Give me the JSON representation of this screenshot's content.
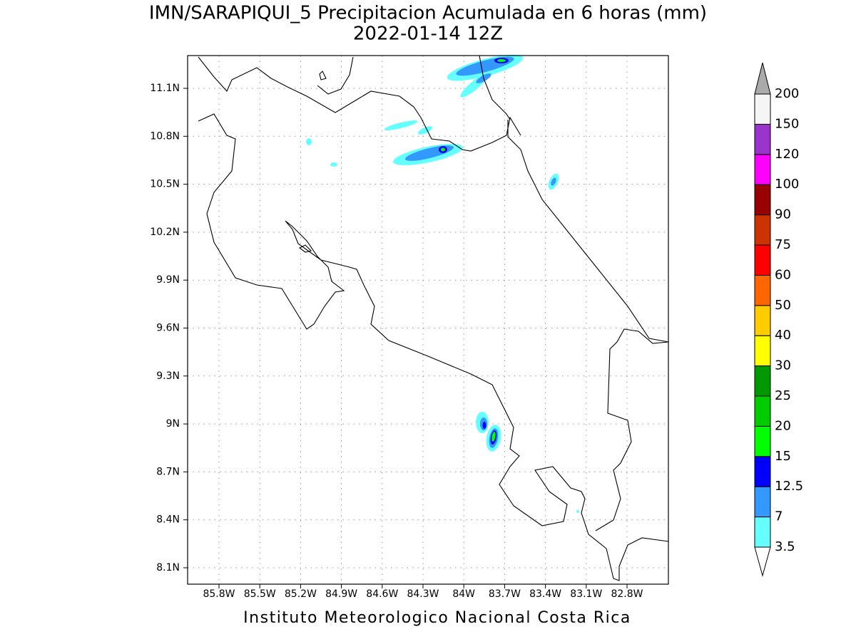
{
  "map": {
    "title": "IMN/SARAPIQUI_5 Precipitacion Acumulada en 6 horas (mm)",
    "subtitle": "2022-01-14 12Z",
    "footer": "Instituto Meteorologico Nacional Costa Rica",
    "lon_ticks": [
      "85.8W",
      "85.5W",
      "85.2W",
      "84.9W",
      "84.6W",
      "84.3W",
      "84W",
      "83.7W",
      "83.4W",
      "83.1W",
      "82.8W"
    ],
    "lat_ticks": [
      "11.1N",
      "10.8N",
      "10.5N",
      "10.2N",
      "9.9N",
      "9.6N",
      "9.3N",
      "9N",
      "8.7N",
      "8.4N",
      "8.1N"
    ],
    "colorbar": {
      "levels": [
        3.5,
        7,
        12.5,
        15,
        20,
        25,
        30,
        40,
        50,
        60,
        75,
        90,
        100,
        120,
        150,
        200
      ],
      "colors": [
        "#66ffff",
        "#3399ff",
        "#0000ff",
        "#00ff00",
        "#00cc00",
        "#009900",
        "#ffff00",
        "#ffcc00",
        "#ff6600",
        "#ff0000",
        "#cc3300",
        "#990000",
        "#ff00ff",
        "#9933cc",
        "#f5f5f5"
      ],
      "under_color": "#ffffff",
      "over_color": "#aaaaaa"
    }
  }
}
